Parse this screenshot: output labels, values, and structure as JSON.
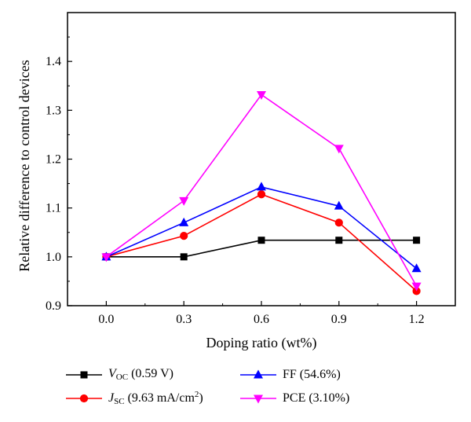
{
  "chart_data": {
    "type": "line",
    "xlabel": "Doping ratio (wt%)",
    "ylabel": "Relative difference to control devices",
    "x": [
      0.0,
      0.3,
      0.6,
      0.9,
      1.2
    ],
    "x_tick_labels": [
      "0.0",
      "0.3",
      "0.6",
      "0.9",
      "1.2"
    ],
    "y_tick_labels": [
      "0.9",
      "1.0",
      "1.1",
      "1.2",
      "1.3",
      "1.4"
    ],
    "y_ticks": [
      0.9,
      1.0,
      1.1,
      1.2,
      1.3,
      1.4
    ],
    "xlim": [
      -0.15,
      1.35
    ],
    "ylim": [
      0.9,
      1.5
    ],
    "grid": false,
    "legend_position": "bottom",
    "series": [
      {
        "name": "V_OC (0.59 V)",
        "label_parts": {
          "main": "V",
          "sub": "OC",
          "rest": " (0.59 V)"
        },
        "marker": "square",
        "color": "#000000",
        "values": [
          1.0,
          1.0,
          1.034,
          1.034,
          1.034
        ]
      },
      {
        "name": "J_SC (9.63 mA/cm^2)",
        "label_parts": {
          "main": "J",
          "sub": "SC",
          "rest": " (9.63 mA/cm",
          "sup": "2",
          "tail": ")"
        },
        "marker": "circle",
        "color": "#ff0000",
        "values": [
          1.0,
          1.043,
          1.128,
          1.07,
          0.93
        ]
      },
      {
        "name": "FF (54.6%)",
        "label_parts": {
          "main": "FF (54.6%)"
        },
        "marker": "triangle-up",
        "color": "#0000ff",
        "values": [
          1.0,
          1.07,
          1.143,
          1.104,
          0.976
        ]
      },
      {
        "name": "PCE (3.10%)",
        "label_parts": {
          "main": "PCE (3.10%)"
        },
        "marker": "triangle-down",
        "color": "#ff00ff",
        "values": [
          1.0,
          1.115,
          1.332,
          1.222,
          0.94
        ]
      }
    ]
  }
}
